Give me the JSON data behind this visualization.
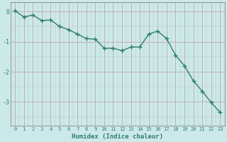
{
  "x": [
    0,
    1,
    2,
    3,
    4,
    5,
    6,
    7,
    8,
    9,
    10,
    11,
    12,
    13,
    14,
    15,
    16,
    17,
    18,
    19,
    20,
    21,
    22,
    23
  ],
  "y": [
    0.02,
    -0.18,
    -0.12,
    -0.3,
    -0.28,
    -0.5,
    -0.6,
    -0.75,
    -0.9,
    -0.92,
    -1.22,
    -1.22,
    -1.3,
    -1.18,
    -1.18,
    -0.75,
    -0.65,
    -0.9,
    -1.45,
    -1.8,
    -2.3,
    -2.65,
    -3.02,
    -3.35
  ],
  "line_color": "#2e7d6e",
  "marker": "+",
  "marker_size": 4,
  "bg_color": "#cce9e9",
  "grid_color": "#c0a8a8",
  "xlabel": "Humidex (Indice chaleur)",
  "ylim": [
    -3.8,
    0.3
  ],
  "xlim": [
    -0.5,
    23.5
  ],
  "yticks": [
    0,
    -1,
    -2,
    -3
  ],
  "xticks": [
    0,
    1,
    2,
    3,
    4,
    5,
    6,
    7,
    8,
    9,
    10,
    11,
    12,
    13,
    14,
    15,
    16,
    17,
    18,
    19,
    20,
    21,
    22,
    23
  ],
  "font_color": "#2e7d6e",
  "line_width": 1.0
}
